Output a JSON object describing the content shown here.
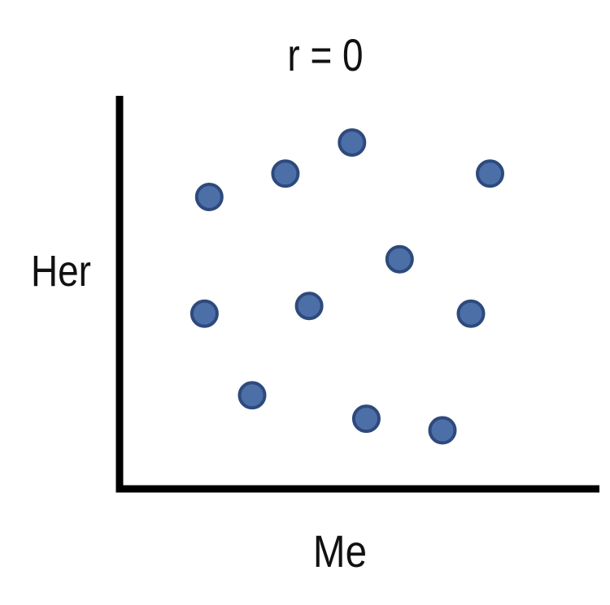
{
  "chart_data": {
    "type": "scatter",
    "title": "r = 0",
    "xlabel": "Me",
    "ylabel": "Her",
    "xlim": [
      0,
      100
    ],
    "ylim": [
      0,
      100
    ],
    "grid": false,
    "point_color": "#4d6fa8",
    "point_edge_color": "#2e4a7c",
    "axis_color": "#000000",
    "points": [
      {
        "x": 18,
        "y": 74
      },
      {
        "x": 34,
        "y": 80
      },
      {
        "x": 48,
        "y": 88
      },
      {
        "x": 77,
        "y": 80
      },
      {
        "x": 58,
        "y": 58
      },
      {
        "x": 17,
        "y": 44
      },
      {
        "x": 39,
        "y": 46
      },
      {
        "x": 73,
        "y": 44
      },
      {
        "x": 27,
        "y": 23
      },
      {
        "x": 51,
        "y": 17
      },
      {
        "x": 67,
        "y": 14
      }
    ]
  }
}
